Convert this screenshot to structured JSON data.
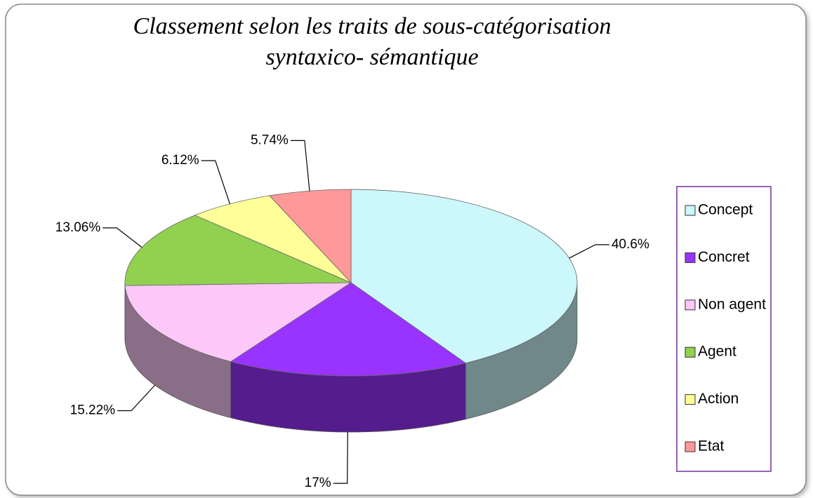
{
  "chart_data": {
    "type": "pie",
    "title": [
      "Classement selon les traits de sous-catégorisation",
      "syntaxico- sémantique"
    ],
    "categories": [
      "Concept",
      "Concret",
      "Non agent",
      "Agent",
      "Action",
      "Etat"
    ],
    "values": [
      40.6,
      17,
      15.22,
      13.06,
      6.12,
      5.74
    ],
    "value_labels": [
      "40.6%",
      "17%",
      "15.22%",
      "13.06%",
      "6.12%",
      "5.74%"
    ],
    "colors": [
      "#ccf7fb",
      "#9933ff",
      "#fbc8f8",
      "#92d050",
      "#ffff99",
      "#ff9999"
    ],
    "legend": "right"
  }
}
